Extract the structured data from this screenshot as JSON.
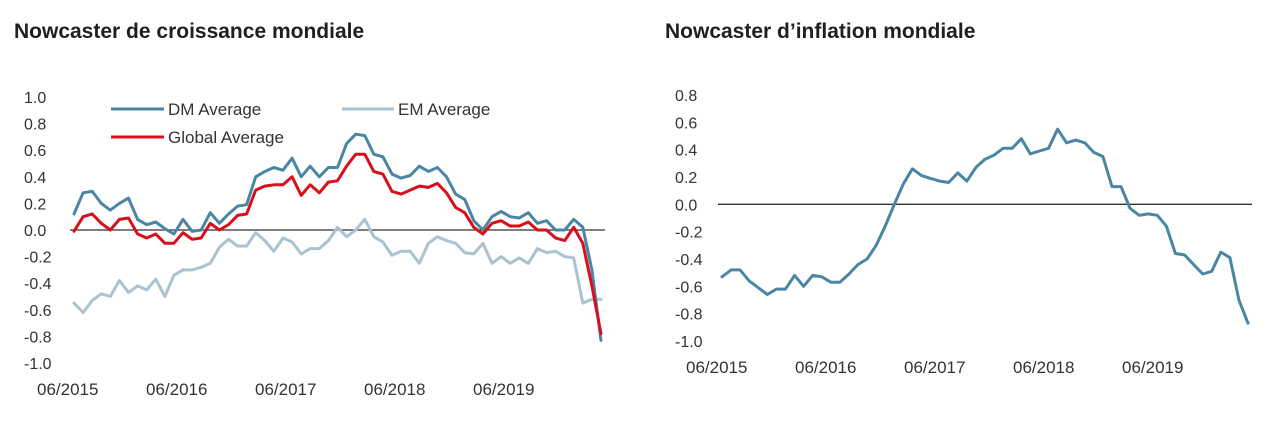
{
  "chart_data": [
    {
      "type": "line",
      "title": "Nowcaster de croissance mondiale",
      "xlabel": "",
      "ylabel": "",
      "ylim": [
        -1.0,
        1.0
      ],
      "yticks": [
        "1.0",
        "0.8",
        "0.6",
        "0.4",
        "0.2",
        "0.0",
        "-0.2",
        "-0.4",
        "-0.6",
        "-0.8",
        "-1.0"
      ],
      "xticks": [
        "06/2015",
        "06/2016",
        "06/2017",
        "06/2018",
        "06/2019"
      ],
      "legend": "top-left",
      "zero_line": true,
      "grid": false,
      "series": [
        {
          "name": "DM Average",
          "color": "#4a86a3",
          "values": [
            0.12,
            0.28,
            0.29,
            0.2,
            0.15,
            0.2,
            0.24,
            0.08,
            0.04,
            0.06,
            0.01,
            -0.03,
            0.08,
            -0.01,
            0.0,
            0.13,
            0.05,
            0.12,
            0.18,
            0.19,
            0.4,
            0.44,
            0.47,
            0.45,
            0.54,
            0.4,
            0.48,
            0.4,
            0.47,
            0.47,
            0.65,
            0.72,
            0.71,
            0.57,
            0.55,
            0.42,
            0.39,
            0.41,
            0.48,
            0.44,
            0.47,
            0.4,
            0.27,
            0.23,
            0.07,
            0.0,
            0.1,
            0.14,
            0.1,
            0.09,
            0.13,
            0.05,
            0.07,
            0.0,
            0.0,
            0.08,
            0.02,
            -0.3,
            -0.83
          ]
        },
        {
          "name": "EM Average",
          "color": "#a9c3d1",
          "values": [
            -0.55,
            -0.62,
            -0.53,
            -0.48,
            -0.5,
            -0.38,
            -0.47,
            -0.42,
            -0.45,
            -0.37,
            -0.5,
            -0.34,
            -0.3,
            -0.3,
            -0.28,
            -0.25,
            -0.13,
            -0.07,
            -0.12,
            -0.12,
            -0.02,
            -0.08,
            -0.16,
            -0.06,
            -0.09,
            -0.18,
            -0.14,
            -0.14,
            -0.08,
            0.02,
            -0.05,
            0.0,
            0.08,
            -0.05,
            -0.09,
            -0.19,
            -0.16,
            -0.16,
            -0.25,
            -0.1,
            -0.05,
            -0.08,
            -0.1,
            -0.17,
            -0.18,
            -0.1,
            -0.25,
            -0.2,
            -0.25,
            -0.21,
            -0.25,
            -0.14,
            -0.17,
            -0.16,
            -0.2,
            -0.21,
            -0.55,
            -0.52,
            -0.52
          ]
        },
        {
          "name": "Global Average",
          "color": "#d7101c",
          "values": [
            -0.01,
            0.1,
            0.12,
            0.05,
            0.0,
            0.08,
            0.09,
            -0.03,
            -0.06,
            -0.03,
            -0.1,
            -0.1,
            -0.02,
            -0.07,
            -0.06,
            0.05,
            0.0,
            0.04,
            0.11,
            0.12,
            0.3,
            0.33,
            0.34,
            0.34,
            0.4,
            0.26,
            0.34,
            0.28,
            0.36,
            0.37,
            0.48,
            0.57,
            0.57,
            0.44,
            0.42,
            0.29,
            0.27,
            0.3,
            0.33,
            0.32,
            0.35,
            0.28,
            0.17,
            0.13,
            0.02,
            -0.03,
            0.05,
            0.07,
            0.03,
            0.03,
            0.06,
            0.0,
            0.0,
            -0.06,
            -0.08,
            0.02,
            -0.1,
            -0.42,
            -0.78
          ]
        }
      ]
    },
    {
      "type": "line",
      "title": "Nowcaster d’inflation mondiale",
      "xlabel": "",
      "ylabel": "",
      "ylim": [
        -1.0,
        0.8
      ],
      "yticks": [
        "0.8",
        "0.6",
        "0.4",
        "0.2",
        "0.0",
        "-0.2",
        "-0.4",
        "-0.6",
        "-0.8",
        "-1.0"
      ],
      "xticks": [
        "06/2015",
        "06/2016",
        "06/2017",
        "06/2018",
        "06/2019"
      ],
      "legend": "none",
      "zero_line": true,
      "grid": false,
      "series": [
        {
          "color": "#4a86a3",
          "values": [
            -0.53,
            -0.48,
            -0.48,
            -0.56,
            -0.61,
            -0.66,
            -0.62,
            -0.62,
            -0.52,
            -0.6,
            -0.52,
            -0.53,
            -0.57,
            -0.57,
            -0.51,
            -0.44,
            -0.4,
            -0.3,
            -0.16,
            0.0,
            0.15,
            0.26,
            0.21,
            0.19,
            0.17,
            0.16,
            0.23,
            0.17,
            0.27,
            0.33,
            0.36,
            0.41,
            0.41,
            0.48,
            0.37,
            0.39,
            0.41,
            0.55,
            0.45,
            0.47,
            0.45,
            0.38,
            0.35,
            0.13,
            0.13,
            -0.03,
            -0.08,
            -0.07,
            -0.08,
            -0.16,
            -0.36,
            -0.37,
            -0.44,
            -0.51,
            -0.49,
            -0.35,
            -0.39,
            -0.7,
            -0.87
          ]
        }
      ]
    }
  ]
}
